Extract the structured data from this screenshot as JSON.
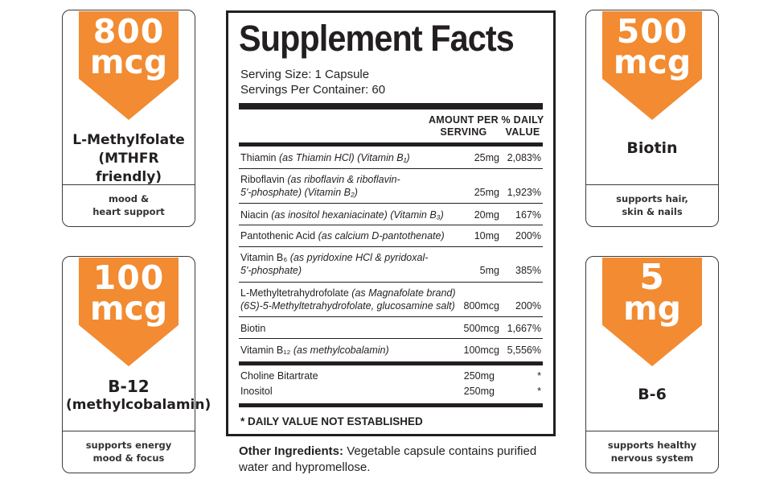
{
  "cards": [
    {
      "amount": "800",
      "unit": "mcg",
      "name_line1": "L-Methylfolate",
      "name_line2": "(MTHFR friendly)",
      "desc_line1": "mood &",
      "desc_line2": "heart support"
    },
    {
      "amount": "100",
      "unit": "mcg",
      "name_line1": "B-12",
      "name_line2": "(methylcobalamin)",
      "desc_line1": "supports energy",
      "desc_line2": "mood & focus"
    },
    {
      "amount": "500",
      "unit": "mcg",
      "name_line1": "Biotin",
      "name_line2": "",
      "desc_line1": "supports hair,",
      "desc_line2": "skin & nails"
    },
    {
      "amount": "5",
      "unit": "mg",
      "name_line1": "B-6",
      "name_line2": "",
      "desc_line1": "supports healthy",
      "desc_line2": "nervous system"
    }
  ],
  "facts": {
    "title": "Supplement Facts",
    "serving_size": "Serving Size: 1 Capsule",
    "servings_per_container": "Servings Per Container: 60",
    "col_amount_line1": "AMOUNT PER",
    "col_amount_line2": "SERVING",
    "col_dv_line1": "% DAILY",
    "col_dv_line2": "VALUE",
    "rows": [
      {
        "name": "Thiamin",
        "detail": "(as Thiamin HCl) (Vitamin B₁)",
        "amount": "25mg",
        "dv": "2,083%"
      },
      {
        "name": "Riboflavin",
        "detail": "(as riboflavin & riboflavin-",
        "detail2": "5'-phosphate) (Vitamin B₂)",
        "amount": "25mg",
        "dv": "1,923%"
      },
      {
        "name": "Niacin",
        "detail": "(as inositol hexaniacinate) (Vitamin B₃)",
        "amount": "20mg",
        "dv": "167%"
      },
      {
        "name": "Pantothenic Acid",
        "detail": "(as calcium D-pantothenate)",
        "amount": "10mg",
        "dv": "200%"
      },
      {
        "name": "Vitamin B₆",
        "detail": "(as pyridoxine HCl & pyridoxal-",
        "detail2": "5'-phosphate)",
        "amount": "5mg",
        "dv": "385%"
      },
      {
        "name": "L-Methyltetrahydrofolate",
        "detail": "(as Magnafolate brand)",
        "detail2": "(6S)-5-Methyltetrahydrofolate, glucosamine salt)",
        "amount": "800mcg",
        "dv": "200%"
      },
      {
        "name": "Biotin",
        "detail": "",
        "amount": "500mcg",
        "dv": "1,667%"
      },
      {
        "name": "Vitamin B₁₂",
        "detail": "(as methylcobalamin)",
        "amount": "100mcg",
        "dv": "5,556%"
      },
      {
        "name": "Choline Bitartrate",
        "detail": "",
        "amount": "250mg",
        "dv": "*"
      },
      {
        "name": "Inositol",
        "detail": "",
        "amount": "250mg",
        "dv": "*"
      }
    ],
    "footnote": "* DAILY VALUE NOT ESTABLISHED"
  },
  "other_ingredients": {
    "label": "Other Ingredients:",
    "text": "Vegetable capsule contains purified water and hypromellose."
  }
}
